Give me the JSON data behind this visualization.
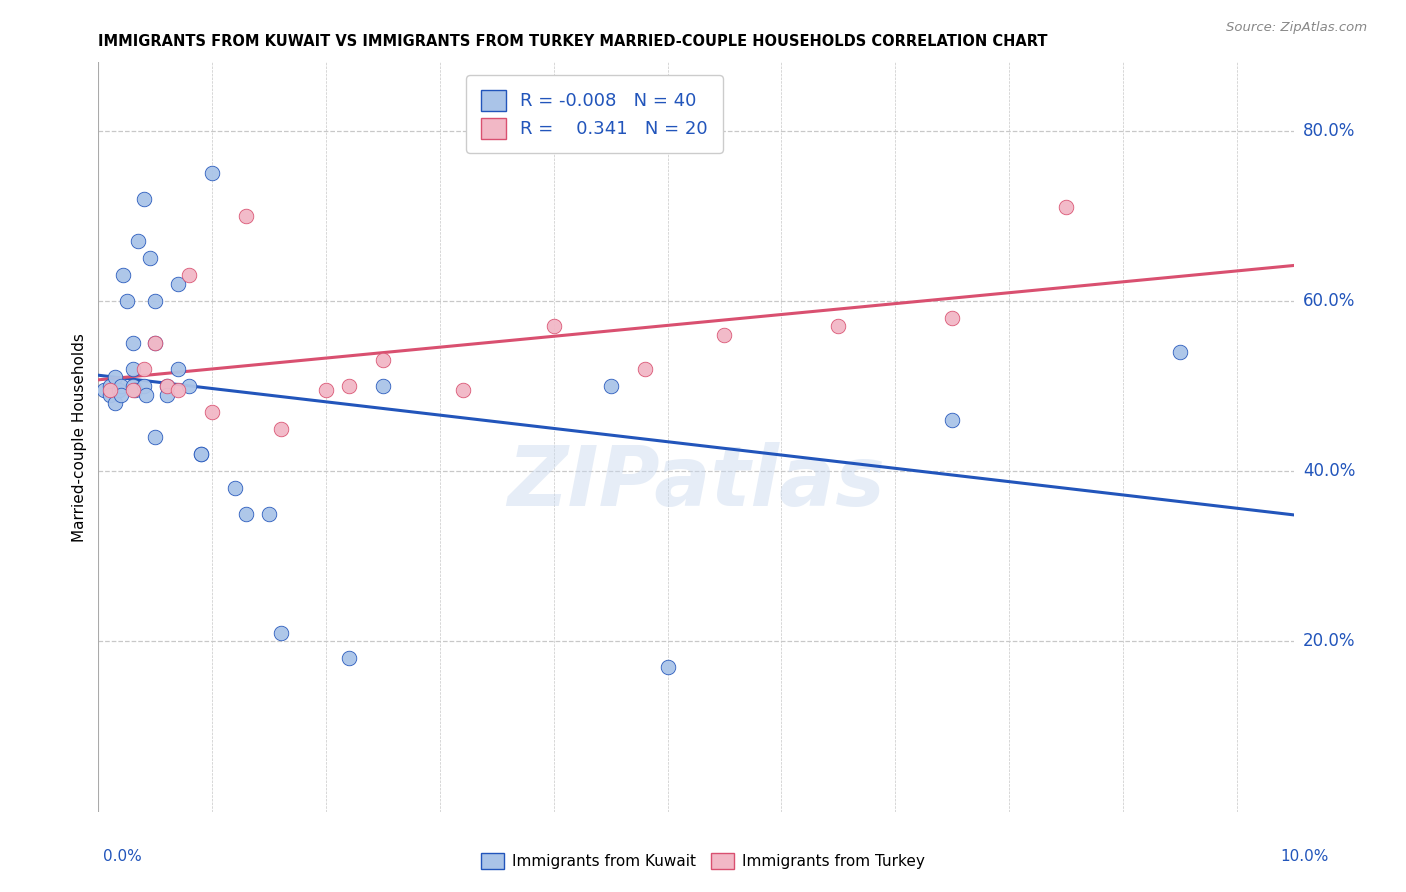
{
  "title": "IMMIGRANTS FROM KUWAIT VS IMMIGRANTS FROM TURKEY MARRIED-COUPLE HOUSEHOLDS CORRELATION CHART",
  "source": "Source: ZipAtlas.com",
  "ylabel": "Married-couple Households",
  "watermark": "ZIPatlas",
  "legend_r_kuwait": "-0.008",
  "legend_n_kuwait": "40",
  "legend_r_turkey": "0.341",
  "legend_n_turkey": "20",
  "kuwait_color": "#aac4e8",
  "turkey_color": "#f2b8c6",
  "kuwait_line_color": "#2255bb",
  "turkey_line_color": "#d95070",
  "kuwait_x": [
    0.0005,
    0.001,
    0.001,
    0.0015,
    0.0015,
    0.0018,
    0.002,
    0.002,
    0.0022,
    0.0025,
    0.003,
    0.003,
    0.003,
    0.0032,
    0.0035,
    0.004,
    0.004,
    0.0042,
    0.0045,
    0.005,
    0.005,
    0.005,
    0.006,
    0.006,
    0.007,
    0.007,
    0.008,
    0.009,
    0.009,
    0.01,
    0.012,
    0.013,
    0.015,
    0.016,
    0.022,
    0.025,
    0.045,
    0.05,
    0.075,
    0.095
  ],
  "kuwait_y": [
    0.495,
    0.5,
    0.49,
    0.51,
    0.48,
    0.495,
    0.5,
    0.49,
    0.63,
    0.6,
    0.55,
    0.52,
    0.5,
    0.495,
    0.67,
    0.72,
    0.5,
    0.49,
    0.65,
    0.6,
    0.55,
    0.44,
    0.5,
    0.49,
    0.62,
    0.52,
    0.5,
    0.42,
    0.42,
    0.75,
    0.38,
    0.35,
    0.35,
    0.21,
    0.18,
    0.5,
    0.5,
    0.17,
    0.46,
    0.54
  ],
  "turkey_x": [
    0.001,
    0.003,
    0.004,
    0.005,
    0.006,
    0.007,
    0.008,
    0.01,
    0.013,
    0.016,
    0.02,
    0.022,
    0.025,
    0.032,
    0.04,
    0.048,
    0.055,
    0.065,
    0.075,
    0.085
  ],
  "turkey_y": [
    0.495,
    0.495,
    0.52,
    0.55,
    0.5,
    0.495,
    0.63,
    0.47,
    0.7,
    0.45,
    0.495,
    0.5,
    0.53,
    0.495,
    0.57,
    0.52,
    0.56,
    0.57,
    0.58,
    0.71
  ],
  "xlim": [
    0.0,
    0.105
  ],
  "ylim": [
    0.0,
    0.88
  ],
  "ytick_positions": [
    0.2,
    0.4,
    0.6,
    0.8
  ],
  "ytick_labels": [
    "20.0%",
    "40.0%",
    "60.0%",
    "80.0%"
  ],
  "background_color": "#ffffff",
  "grid_color": "#c8c8c8"
}
